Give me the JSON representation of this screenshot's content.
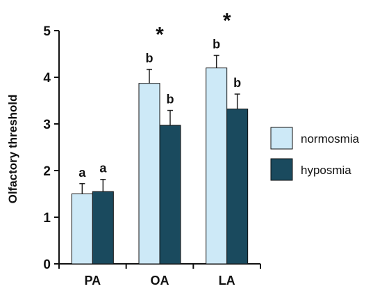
{
  "chart_data": {
    "type": "bar",
    "ylabel": "Olfactory threshold",
    "xlabel": "",
    "ylim": [
      0,
      5
    ],
    "yticks": [
      0,
      1,
      2,
      3,
      4,
      5
    ],
    "categories": [
      "PA",
      "OA",
      "LA"
    ],
    "series": [
      {
        "name": "normosmia",
        "color": "#cde9f7",
        "values": [
          1.5,
          3.87,
          4.2
        ],
        "errors": [
          0.22,
          0.3,
          0.27
        ],
        "letters": [
          "a",
          "b",
          "b"
        ]
      },
      {
        "name": "hyposmia",
        "color": "#1a4a5e",
        "values": [
          1.55,
          2.97,
          3.32
        ],
        "errors": [
          0.26,
          0.32,
          0.32
        ],
        "letters": [
          "a",
          "b",
          "b"
        ]
      }
    ],
    "significance": [
      "",
      "*",
      "*"
    ],
    "legend_position": "right"
  }
}
